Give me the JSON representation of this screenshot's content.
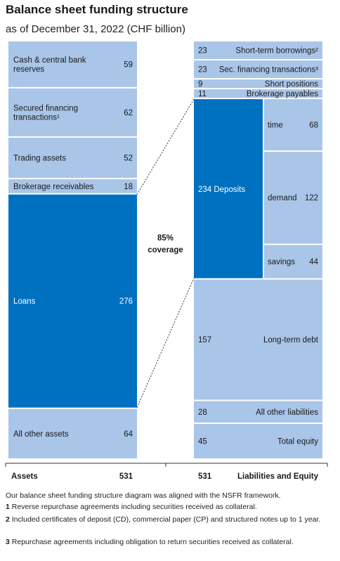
{
  "title": "Balance sheet funding structure",
  "subtitle": "as of December 31, 2022 (CHF billion)",
  "chart_data": {
    "type": "bar",
    "colors": {
      "light": "#a9c5e8",
      "dark": "#0070c0",
      "text": "#1a1a1a"
    },
    "coverage_label": [
      "85%",
      "coverage"
    ],
    "assets": {
      "label": "Assets",
      "total": 531,
      "items": [
        {
          "name": [
            "Cash & central bank",
            "reserves"
          ],
          "value": 59
        },
        {
          "name": [
            "Secured financing",
            "transactions¹"
          ],
          "value": 62
        },
        {
          "name": [
            "Trading assets"
          ],
          "value": 52
        },
        {
          "name": [
            "Brokerage receivables"
          ],
          "value": 18
        },
        {
          "name": [
            "Loans"
          ],
          "value": 276,
          "highlight": true
        },
        {
          "name": [
            "All other assets"
          ],
          "value": 64
        }
      ]
    },
    "liabilities": {
      "label": "Liabilities and Equity",
      "total": 531,
      "items": [
        {
          "name": "Short-term borrowings²",
          "value": 23
        },
        {
          "name": "Sec. financing transactions³",
          "value": 23
        },
        {
          "name": "Short positions",
          "value": 9
        },
        {
          "name": "Brokerage payables",
          "value": 11
        },
        {
          "name": "Deposits",
          "value": 234,
          "highlight": true,
          "breakdown": [
            {
              "name": "time",
              "value": 68
            },
            {
              "name": "demand",
              "value": 122
            },
            {
              "name": "savings",
              "value": 44
            }
          ]
        },
        {
          "name": "Long-term debt",
          "value": 157
        },
        {
          "name": "All other liabilities",
          "value": 28
        },
        {
          "name": "Total equity",
          "value": 45
        }
      ]
    }
  },
  "footnotes": {
    "intro": "Our balance sheet funding structure diagram was aligned with the NSFR framework.",
    "notes": [
      {
        "num": "1",
        "text": "Reverse repurchase agreements including securities received as collateral."
      },
      {
        "num": "2",
        "text": "Included certificates of deposit (CD), commercial paper (CP) and structured notes up to 1 year."
      },
      {
        "num": "3",
        "text": "Repurchase agreements including obligation to return securities received as collateral."
      }
    ]
  }
}
